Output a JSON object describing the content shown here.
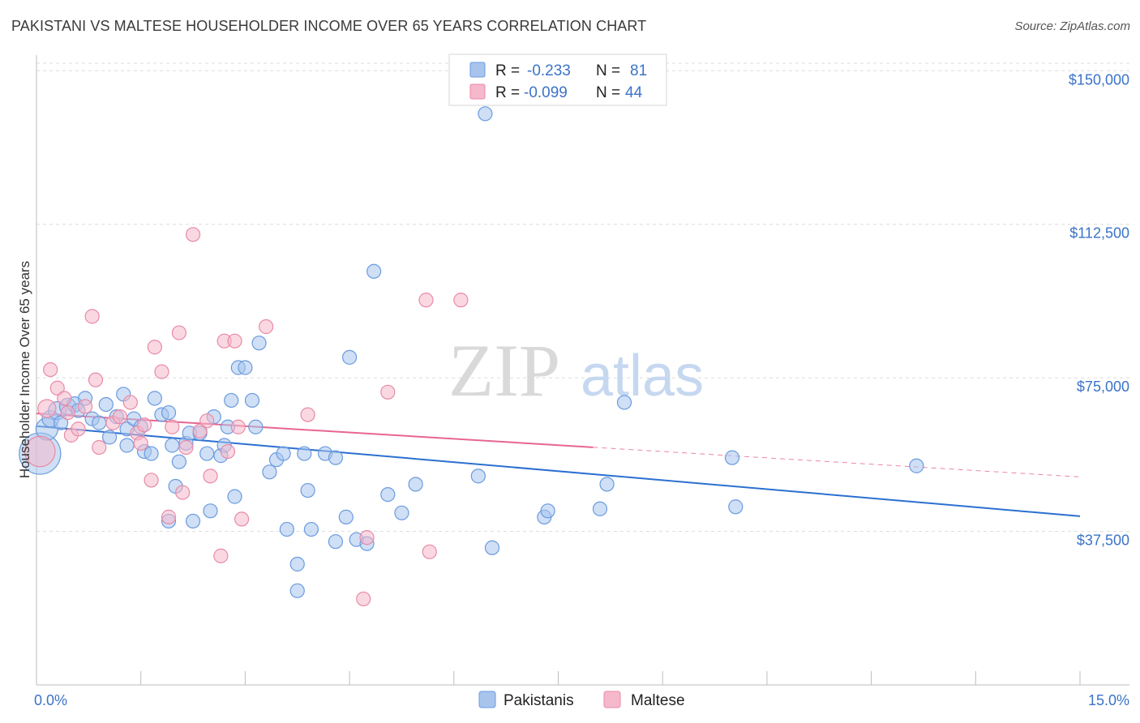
{
  "title": "PAKISTANI VS MALTESE HOUSEHOLDER INCOME OVER 65 YEARS CORRELATION CHART",
  "source": "Source: ZipAtlas.com",
  "watermark": {
    "zip": "ZIP",
    "atlas": "atlas"
  },
  "chart_data": {
    "type": "scatter",
    "title": "PAKISTANI VS MALTESE HOUSEHOLDER INCOME OVER 65 YEARS CORRELATION CHART",
    "xlabel": "",
    "ylabel": "Householder Income Over 65 years",
    "xlim": [
      0,
      15
    ],
    "ylim": [
      0,
      155000
    ],
    "x_tick_labels": {
      "left": "0.0%",
      "right": "15.0%"
    },
    "y_ticks": [
      {
        "value": 37500,
        "label": "$37,500"
      },
      {
        "value": 75000,
        "label": "$75,000"
      },
      {
        "value": 112500,
        "label": "$112,500"
      },
      {
        "value": 150000,
        "label": "$150,000"
      }
    ],
    "legend": {
      "r_label": "R =",
      "n_label": "N =",
      "entries": [
        {
          "name": "Pakistanis",
          "r": "-0.233",
          "n": "81",
          "color": "#a8c4ec",
          "stroke": "#6a9be0"
        },
        {
          "name": "Maltese",
          "r": "-0.099",
          "n": "44",
          "color": "#f6b8cb",
          "stroke": "#e88aa7"
        }
      ]
    },
    "series": [
      {
        "name": "Pakistanis",
        "color": "#a8c4ec",
        "stroke": "#6a9be0",
        "trend": {
          "x0": 0,
          "y0": 63200,
          "x1": 15,
          "y1": 41200,
          "dashed_from": null,
          "color": "#2b6fd1"
        },
        "points": [
          [
            0.05,
            56500,
            3
          ],
          [
            0.15,
            62500,
            1.6
          ],
          [
            0.2,
            65000,
            1.2
          ],
          [
            0.3,
            67000,
            1.3
          ],
          [
            0.35,
            64000,
            1
          ],
          [
            0.45,
            68000,
            1.2
          ],
          [
            0.55,
            68500,
            1.1
          ],
          [
            0.6,
            67000,
            1
          ],
          [
            0.7,
            70000,
            1
          ],
          [
            0.8,
            65000,
            1
          ],
          [
            0.9,
            64000,
            1
          ],
          [
            1.0,
            68500,
            1
          ],
          [
            1.05,
            60500,
            1
          ],
          [
            1.15,
            65500,
            1
          ],
          [
            1.25,
            71000,
            1
          ],
          [
            1.3,
            62500,
            1
          ],
          [
            1.3,
            58500,
            1
          ],
          [
            1.4,
            65000,
            1
          ],
          [
            1.5,
            63000,
            1
          ],
          [
            1.55,
            57000,
            1
          ],
          [
            1.65,
            56500,
            1
          ],
          [
            1.7,
            70000,
            1
          ],
          [
            1.8,
            66000,
            1
          ],
          [
            1.9,
            66500,
            1
          ],
          [
            1.9,
            40000,
            1
          ],
          [
            1.95,
            58500,
            1
          ],
          [
            2.0,
            48500,
            1
          ],
          [
            2.05,
            54500,
            1
          ],
          [
            2.15,
            59000,
            1
          ],
          [
            2.2,
            61500,
            1
          ],
          [
            2.25,
            40000,
            1
          ],
          [
            2.35,
            61500,
            1
          ],
          [
            2.45,
            56500,
            1
          ],
          [
            2.5,
            42500,
            1
          ],
          [
            2.55,
            65500,
            1
          ],
          [
            2.65,
            56000,
            1
          ],
          [
            2.7,
            58500,
            1
          ],
          [
            2.75,
            63000,
            1
          ],
          [
            2.8,
            69500,
            1
          ],
          [
            2.85,
            46000,
            1
          ],
          [
            2.9,
            77500,
            1
          ],
          [
            3.0,
            77500,
            1
          ],
          [
            3.1,
            69500,
            1
          ],
          [
            3.15,
            63000,
            1
          ],
          [
            3.2,
            83500,
            1
          ],
          [
            3.35,
            52000,
            1
          ],
          [
            3.45,
            55000,
            1
          ],
          [
            3.55,
            56500,
            1
          ],
          [
            3.6,
            38000,
            1
          ],
          [
            3.75,
            29500,
            1
          ],
          [
            3.75,
            23000,
            1
          ],
          [
            3.85,
            56500,
            1
          ],
          [
            3.9,
            47500,
            1
          ],
          [
            3.95,
            38000,
            1
          ],
          [
            4.15,
            56500,
            1
          ],
          [
            4.3,
            55500,
            1
          ],
          [
            4.3,
            35000,
            1
          ],
          [
            4.45,
            41000,
            1
          ],
          [
            4.5,
            80000,
            1
          ],
          [
            4.6,
            35500,
            1
          ],
          [
            4.75,
            34500,
            1
          ],
          [
            4.85,
            101000,
            1
          ],
          [
            5.05,
            46500,
            1
          ],
          [
            5.25,
            42000,
            1
          ],
          [
            5.45,
            49000,
            1
          ],
          [
            6.35,
            51000,
            1
          ],
          [
            6.45,
            139500,
            1
          ],
          [
            6.55,
            33500,
            1
          ],
          [
            7.3,
            41000,
            1
          ],
          [
            7.35,
            42500,
            1
          ],
          [
            8.1,
            43000,
            1
          ],
          [
            8.2,
            49000,
            1
          ],
          [
            8.45,
            69000,
            1
          ],
          [
            10.0,
            55500,
            1
          ],
          [
            10.05,
            43500,
            1
          ],
          [
            12.65,
            53500,
            1
          ]
        ]
      },
      {
        "name": "Maltese",
        "color": "#f6b8cb",
        "stroke": "#e88aa7",
        "trend": {
          "x0": 0,
          "y0": 66300,
          "x1": 15,
          "y1": 50800,
          "dashed_from": 8.0,
          "color": "#e8668f"
        },
        "points": [
          [
            0.05,
            57000,
            2.2
          ],
          [
            0.15,
            67500,
            1.3
          ],
          [
            0.2,
            77000,
            1
          ],
          [
            0.3,
            72500,
            1
          ],
          [
            0.4,
            70000,
            1
          ],
          [
            0.45,
            66500,
            1
          ],
          [
            0.5,
            61000,
            1
          ],
          [
            0.6,
            62500,
            1
          ],
          [
            0.7,
            68000,
            1
          ],
          [
            0.8,
            90000,
            1
          ],
          [
            0.85,
            74500,
            1
          ],
          [
            0.9,
            58000,
            1
          ],
          [
            1.1,
            64000,
            1
          ],
          [
            1.2,
            65500,
            1
          ],
          [
            1.35,
            69000,
            1
          ],
          [
            1.45,
            61500,
            1
          ],
          [
            1.5,
            59000,
            1
          ],
          [
            1.55,
            63500,
            1
          ],
          [
            1.65,
            50000,
            1
          ],
          [
            1.7,
            82500,
            1
          ],
          [
            1.8,
            76500,
            1
          ],
          [
            1.9,
            41000,
            1
          ],
          [
            1.95,
            63000,
            1
          ],
          [
            2.05,
            86000,
            1
          ],
          [
            2.1,
            47000,
            1
          ],
          [
            2.15,
            58000,
            1
          ],
          [
            2.25,
            110000,
            1
          ],
          [
            2.35,
            62000,
            1
          ],
          [
            2.45,
            64500,
            1
          ],
          [
            2.5,
            51000,
            1
          ],
          [
            2.65,
            31500,
            1
          ],
          [
            2.7,
            84000,
            1
          ],
          [
            2.75,
            57000,
            1
          ],
          [
            2.85,
            84000,
            1
          ],
          [
            2.9,
            63000,
            1
          ],
          [
            2.95,
            40500,
            1
          ],
          [
            3.3,
            87500,
            1
          ],
          [
            3.9,
            66000,
            1
          ],
          [
            4.7,
            21000,
            1
          ],
          [
            4.75,
            36000,
            1
          ],
          [
            5.05,
            71500,
            1
          ],
          [
            5.6,
            94000,
            1
          ],
          [
            5.65,
            32500,
            1
          ],
          [
            6.1,
            94000,
            1
          ]
        ]
      }
    ]
  },
  "bottom_legend": [
    "Pakistanis",
    "Maltese"
  ]
}
